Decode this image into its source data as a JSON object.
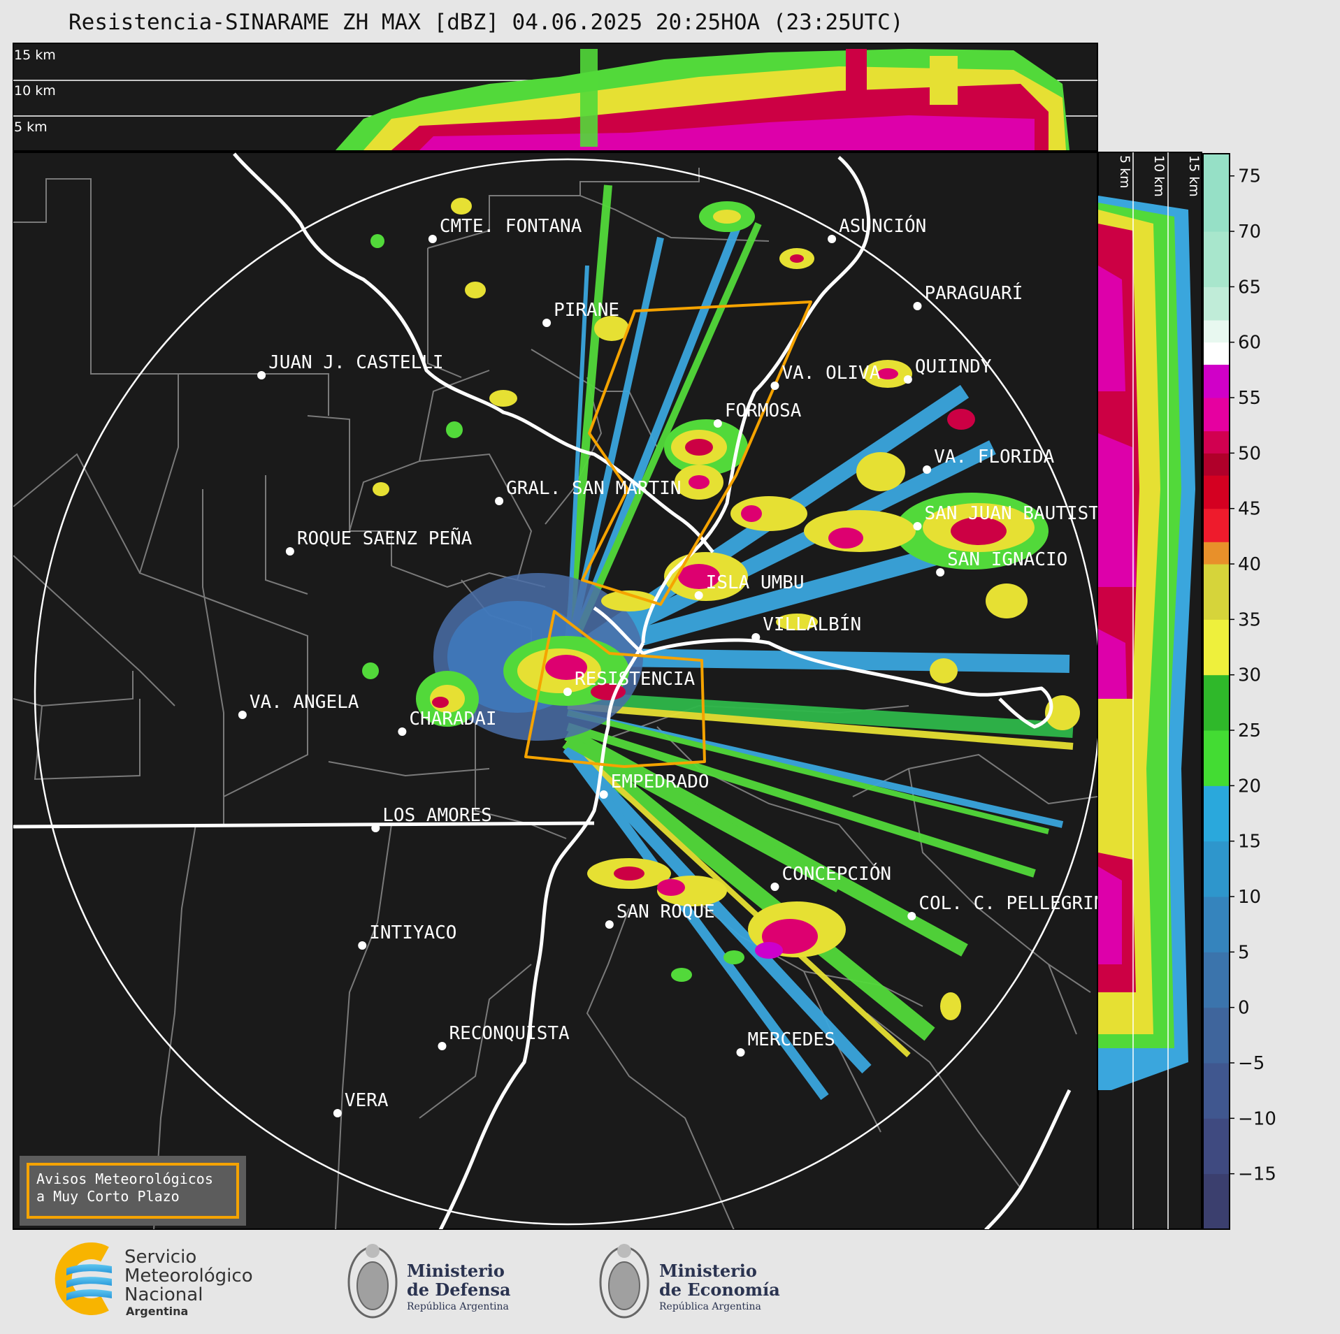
{
  "title": "Resistencia-SINARAME ZH MAX [dBZ] 04.06.2025 20:25HOA (23:25UTC)",
  "colors": {
    "background_map": "#1a1a1a",
    "range_ring": "#ffffff",
    "warning_polygon": "#f5a300",
    "river": "#ffffff",
    "boundary": "#808080",
    "page": "#e6e6e6"
  },
  "top_panel": {
    "height_labels": [
      "15 km",
      "10 km",
      "5 km"
    ]
  },
  "side_panel": {
    "height_labels": [
      "5 km",
      "10 km",
      "15 km"
    ]
  },
  "colorbar": {
    "unit": "dBZ",
    "tick_labels": [
      "75",
      "70",
      "65",
      "60",
      "55",
      "50",
      "45",
      "40",
      "35",
      "30",
      "25",
      "20",
      "15",
      "10",
      "5",
      "0",
      "−5",
      "−10",
      "−15"
    ],
    "range": [
      -20,
      77
    ]
  },
  "places": [
    {
      "name": "CMTE. FONTANA",
      "lon_lat": [
        -59.7,
        -25.3
      ]
    },
    {
      "name": "PIRANE",
      "lon_lat": [
        -59.1,
        -25.7
      ]
    },
    {
      "name": "ASUNCIÓN",
      "lon_lat": [
        -57.6,
        -25.3
      ]
    },
    {
      "name": "PARAGUARÍ",
      "lon_lat": [
        -57.15,
        -25.62
      ]
    },
    {
      "name": "JUAN J. CASTELLI",
      "lon_lat": [
        -60.6,
        -25.95
      ]
    },
    {
      "name": "VA. OLIVA",
      "lon_lat": [
        -57.9,
        -26.0
      ]
    },
    {
      "name": "QUIINDY",
      "lon_lat": [
        -57.2,
        -25.97
      ]
    },
    {
      "name": "FORMOSA",
      "lon_lat": [
        -58.2,
        -26.18
      ]
    },
    {
      "name": "VA. FLORIDA",
      "lon_lat": [
        -57.1,
        -26.4
      ]
    },
    {
      "name": "GRAL. SAN MARTIN",
      "lon_lat": [
        -59.35,
        -26.55
      ]
    },
    {
      "name": "SAN JUAN BAUTISTA",
      "lon_lat": [
        -57.15,
        -26.67
      ]
    },
    {
      "name": "ROQUE SAENZ PEÑA",
      "lon_lat": [
        -60.45,
        -26.79
      ]
    },
    {
      "name": "SAN IGNACIO",
      "lon_lat": [
        -57.03,
        -26.89
      ]
    },
    {
      "name": "ISLA UMBU",
      "lon_lat": [
        -58.3,
        -27.0
      ]
    },
    {
      "name": "VILLALBÍN",
      "lon_lat": [
        -58.0,
        -27.2
      ]
    },
    {
      "name": "RESISTENCIA",
      "lon_lat": [
        -58.99,
        -27.46
      ]
    },
    {
      "name": "VA. ANGELA",
      "lon_lat": [
        -60.7,
        -27.57
      ]
    },
    {
      "name": "CHARADAI",
      "lon_lat": [
        -59.86,
        -27.65
      ]
    },
    {
      "name": "EMPEDRADO",
      "lon_lat": [
        -58.8,
        -27.95
      ]
    },
    {
      "name": "LOS AMORES",
      "lon_lat": [
        -60.0,
        -28.11
      ]
    },
    {
      "name": "CONCEPCIÓN",
      "lon_lat": [
        -57.9,
        -28.39
      ]
    },
    {
      "name": "COL. C. PELLEGRINI",
      "lon_lat": [
        -57.18,
        -28.53
      ]
    },
    {
      "name": "SAN ROQUE",
      "lon_lat": [
        -58.77,
        -28.57
      ]
    },
    {
      "name": "INTIYACO",
      "lon_lat": [
        -60.07,
        -28.67
      ]
    },
    {
      "name": "RECONQUISTA",
      "lon_lat": [
        -59.65,
        -29.15
      ]
    },
    {
      "name": "MERCEDES",
      "lon_lat": [
        -58.08,
        -29.18
      ]
    },
    {
      "name": "VERA",
      "lon_lat": [
        -60.2,
        -29.47
      ]
    }
  ],
  "notice": {
    "line1": "Avisos Meteorológicos",
    "line2": "a Muy Corto Plazo"
  },
  "logos": {
    "smn": {
      "line1": "Servicio",
      "line2": "Meteorológico",
      "line3": "Nacional",
      "line4": "Argentina"
    },
    "defensa": {
      "line1": "Ministerio",
      "line2": "de Defensa",
      "line3": "República Argentina"
    },
    "economia": {
      "line1": "Ministerio",
      "line2": "de Economía",
      "line3": "República Argentina"
    }
  }
}
